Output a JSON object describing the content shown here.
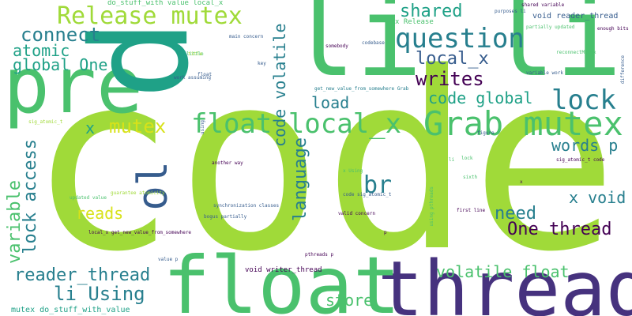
{
  "background": "#ffffff",
  "palette": {
    "lime": "#a0da39",
    "green": "#4ac16d",
    "teal": "#1fa187",
    "blue": "#277f8e",
    "slate": "#365c8d",
    "indigo": "#46327e",
    "purple": "#440154",
    "yellow": "#d8e219"
  },
  "words": {
    "code": "code",
    "thread": "thread",
    "float_big": "float",
    "pre": "pre",
    "p_big": "p",
    "li_big": "li li li",
    "release_mutex": "Release mutex",
    "grab_mutex": "Grab mutex",
    "question": "question",
    "connect": "connect",
    "atomic": "atomic",
    "global_one": "global One",
    "shared": "shared",
    "local_x_top": "local_x",
    "writes": "writes",
    "lock": "lock",
    "code_global": "code global",
    "float_local_x": "float local_x",
    "load": "load",
    "code_volatile": "code volatile",
    "mutex": "mutex",
    "x_left": "x",
    "words_p": "words p",
    "language": "language",
    "br": "br",
    "ol": "ol",
    "variable": "variable",
    "lock_access": "lock access",
    "reads": "reads",
    "x_void": "x void",
    "need": "need",
    "one_thread": "One thread",
    "reader_thread": "reader_thread",
    "li_using": "li Using",
    "volatile_float": "volatile float",
    "store": "store",
    "mutex_do_stuff": "mutex do_stuff_with_value",
    "void_reader_thread": "void reader_thread",
    "x_release": "x Release",
    "do_stuff_local_x": "do_stuff_with value local_x",
    "purposes_li": "purposes li",
    "main_concern": "main concern",
    "enough_bits": "enough bits",
    "difference": "difference",
    "shared_variable": "shared variable",
    "variable_work": "variable work",
    "work_assuming": "work assuming",
    "get_new_value": "get_new_value_from_somewhere Grab",
    "another_way": "another way",
    "sig_atomic_code": "sig_atomic_t code",
    "updated_value": "updated value",
    "guarantee_atomicity": "guarantee atomicity",
    "bogus_partially": "bogus partially",
    "local_x_get_new": "local_x get_new_value_from_somewhere",
    "void_writer_thread": "void writer_thread",
    "pthreads_p": "pthreads p",
    "value_p": "value p",
    "valid_concern": "valid concern",
    "code_sig_atomic": "code sig_atomic_t",
    "using_pthreads": "using pthreads",
    "first_line": "first line",
    "reconnectMutex": "reconnectMutex",
    "partially_updated": "partially updated",
    "sig_atomic_t": "sig_atomic_t",
    "somebody": "somebody",
    "key": "key",
    "using": "using",
    "float_small": "float",
    "lock_small": "lock",
    "little": "little",
    "synchronization_classes": "synchronization classes",
    "x_using": "x Using",
    "li_small": "li",
    "sixth": "sixth",
    "codebase": "codebase",
    "figure": "figure",
    "small_p": "p",
    "tiny_x": "x",
    "title": "title"
  }
}
